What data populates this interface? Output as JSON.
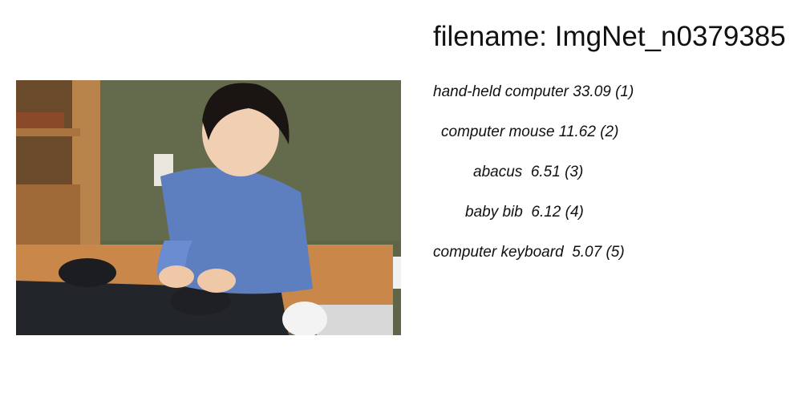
{
  "header": {
    "title": "filename: ImgNet_n0379385"
  },
  "predictions": [
    "hand-held computer 33.09 (1)",
    "computer mouse 11.62 (2)",
    "abacus  6.51 (3)",
    "baby bib  6.12 (4)",
    "computer keyboard  5.07 (5)"
  ]
}
